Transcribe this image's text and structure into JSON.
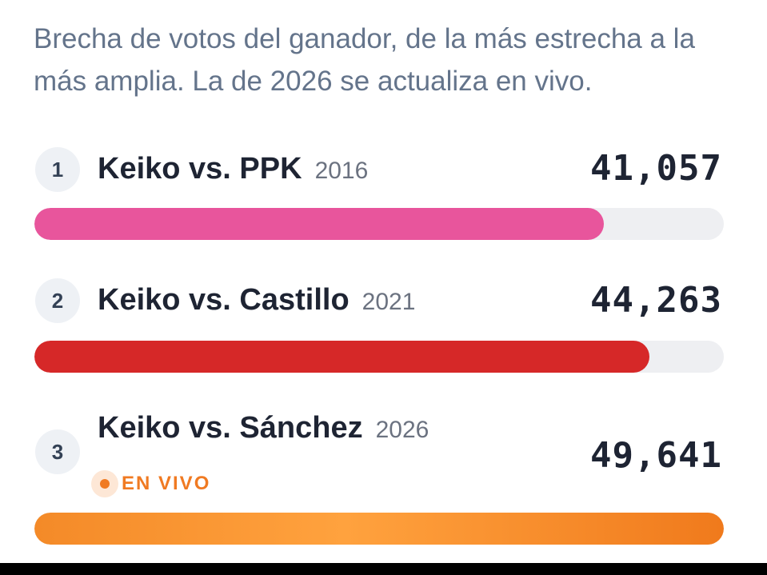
{
  "intro_text": "Brecha de votos del ganador, de la más estrecha a la más amplia. La de 2026 se actualiza en vivo.",
  "live_label": "EN VIVO",
  "chart_data": {
    "type": "bar",
    "orientation": "horizontal",
    "sort": "ascending",
    "categories": [
      "Keiko vs. PPK",
      "Keiko vs. Castillo",
      "Keiko vs. Sánchez"
    ],
    "ranks": [
      "1",
      "2",
      "3"
    ],
    "years": [
      "2016",
      "2021",
      "2026"
    ],
    "values": [
      41057,
      44263,
      49641
    ],
    "value_labels": [
      "41,057",
      "44,263",
      "49,641"
    ],
    "xlim": [
      0,
      49641
    ],
    "bar_fill_fractions": [
      0.826,
      0.892,
      1.0
    ],
    "colors": [
      "#e8559c",
      "#d62828",
      "#f48a28"
    ],
    "live_index": 2,
    "grid": false,
    "legend": "none"
  }
}
